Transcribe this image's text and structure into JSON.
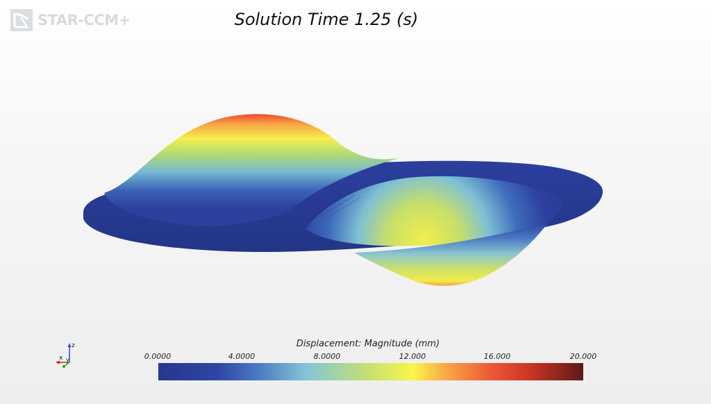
{
  "app": {
    "logo_text": "STAR-CCM+"
  },
  "title": "Solution Time 1.25 (s)",
  "triad": {
    "x_label": "x",
    "y_label": "y",
    "z_label": "z"
  },
  "legend": {
    "title": "Displacement: Magnitude (mm)",
    "ticks": [
      "0.0000",
      "4.0000",
      "8.0000",
      "12.000",
      "16.000",
      "20.000"
    ],
    "colormap": [
      "#26378c",
      "#2f46a6",
      "#4d7dc4",
      "#84c6d6",
      "#c9e16e",
      "#f9f54b",
      "#f8a545",
      "#ee5a36",
      "#c83325",
      "#5a1a17"
    ]
  }
}
